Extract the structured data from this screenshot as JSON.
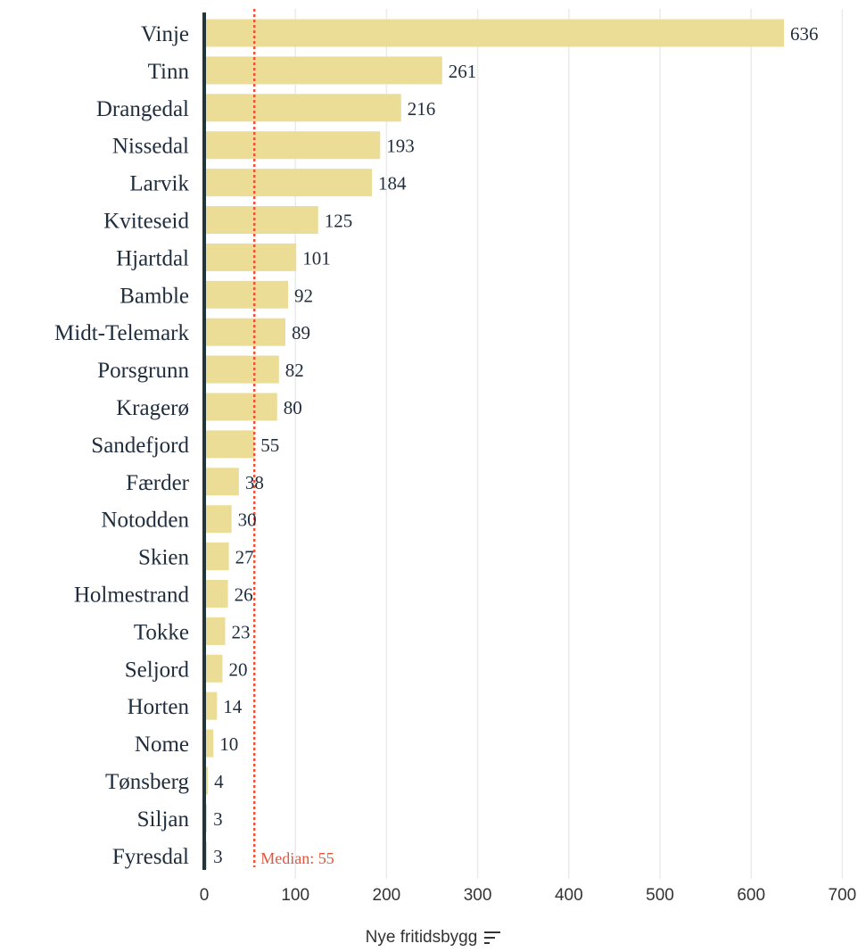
{
  "chart_data": {
    "type": "bar",
    "orientation": "horizontal",
    "categories": [
      "Vinje",
      "Tinn",
      "Drangedal",
      "Nissedal",
      "Larvik",
      "Kviteseid",
      "Hjartdal",
      "Bamble",
      "Midt-Telemark",
      "Porsgrunn",
      "Kragerø",
      "Sandefjord",
      "Færder",
      "Notodden",
      "Skien",
      "Holmestrand",
      "Tokke",
      "Seljord",
      "Horten",
      "Nome",
      "Tønsberg",
      "Siljan",
      "Fyresdal"
    ],
    "values": [
      636,
      261,
      216,
      193,
      184,
      125,
      101,
      92,
      89,
      82,
      80,
      55,
      38,
      30,
      27,
      26,
      23,
      20,
      14,
      10,
      4,
      3,
      3
    ],
    "xlabel": "Nye fritidsbygg",
    "xlim": [
      0,
      700
    ],
    "xticks": [
      0,
      100,
      200,
      300,
      400,
      500,
      600,
      700
    ],
    "grid": "vertical",
    "median": {
      "value": 55,
      "label": "Median: 55"
    },
    "colors": {
      "bar": "#ebdd96",
      "median": "#e8543a",
      "axis": "#24353a",
      "grid": "#ebebeb"
    }
  },
  "controls": {
    "sort_icon": "sort-icon"
  }
}
